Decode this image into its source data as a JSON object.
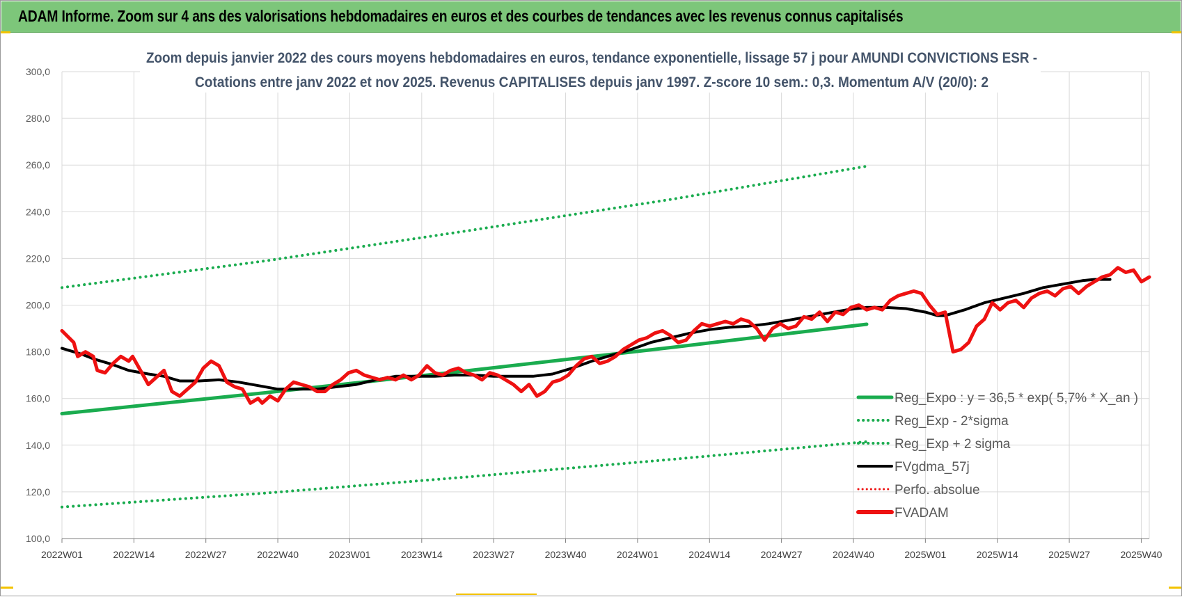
{
  "banner": {
    "title": "ADAM Informe. Zoom sur 4 ans des valorisations hebdomadaires en euros et des courbes de tendances avec les revenus connus capitalisés"
  },
  "colors": {
    "banner_bg": "#7dc67a",
    "fvadam": "#ee1111",
    "fvgdma": "#000000",
    "reg": "#1aac4f",
    "grid": "#d9d9d9"
  },
  "chart_data": {
    "type": "line",
    "title_lines": [
      "Zoom depuis janvier 2022 des cours moyens hebdomadaires en euros, tendance exponentielle, lissage 57 j pour AMUNDI CONVICTIONS ESR -",
      "Cotations entre janv 2022 et nov 2025. Revenus CAPITALISES depuis janv 1997. Z-score 10 sem.: 0,3. Momentum A/V (20/0): 2"
    ],
    "ylim": [
      100,
      300
    ],
    "y_ticks": [
      "100,0",
      "120,0",
      "140,0",
      "160,0",
      "180,0",
      "200,0",
      "220,0",
      "240,0",
      "260,0",
      "280,0",
      "300,0"
    ],
    "x_ticks": [
      "2022W01",
      "2022W14",
      "2022W27",
      "2022W40",
      "2023W01",
      "2023W14",
      "2023W27",
      "2023W40",
      "2024W01",
      "2024W14",
      "2024W27",
      "2024W40",
      "2025W01",
      "2025W14",
      "2025W27",
      "2025W40"
    ],
    "week_count": 206,
    "legend": [
      {
        "label": "Reg_Expo : y = 36,5 * exp( 5,7% *  X_an )",
        "style": "solid-green"
      },
      {
        "label": "Reg_Exp - 2*sigma",
        "style": "dotted-green"
      },
      {
        "label": "Reg_Exp + 2 sigma",
        "style": "dotted-green"
      },
      {
        "label": "FVgdma_57j",
        "style": "solid-black"
      },
      {
        "label": "Perfo. absolue",
        "style": "dotted-red"
      },
      {
        "label": "FVADAM",
        "style": "solid-red"
      }
    ],
    "series": [
      {
        "name": "Reg_Expo : y = 36,5 * exp( 5,7% *  X_an )",
        "points": [
          [
            0,
            153.5
          ],
          [
            52,
            162.5
          ],
          [
            104,
            172.0
          ],
          [
            156,
            182.0
          ],
          [
            205,
            191.8
          ]
        ]
      },
      {
        "name": "Reg_Exp - 2*sigma",
        "points": [
          [
            0,
            113.5
          ],
          [
            52,
            119.5
          ],
          [
            104,
            126.5
          ],
          [
            156,
            134.0
          ],
          [
            205,
            141.5
          ]
        ]
      },
      {
        "name": "Reg_Exp + 2 sigma",
        "points": [
          [
            0,
            207.5
          ],
          [
            52,
            219.0
          ],
          [
            104,
            232.0
          ],
          [
            156,
            245.5
          ],
          [
            205,
            259.5
          ]
        ]
      },
      {
        "name": "FVgdma_57j",
        "points": [
          [
            0,
            181.5
          ],
          [
            5,
            179
          ],
          [
            8,
            177
          ],
          [
            13,
            174.5
          ],
          [
            17,
            172
          ],
          [
            22,
            170.5
          ],
          [
            26,
            169.5
          ],
          [
            30,
            167.5
          ],
          [
            35,
            167.5
          ],
          [
            40,
            168
          ],
          [
            45,
            167
          ],
          [
            50,
            165.5
          ],
          [
            55,
            164
          ],
          [
            60,
            164
          ],
          [
            65,
            164
          ],
          [
            70,
            165
          ],
          [
            75,
            166
          ],
          [
            80,
            168
          ],
          [
            85,
            169.5
          ],
          [
            90,
            169.5
          ],
          [
            95,
            169.5
          ],
          [
            100,
            170
          ],
          [
            105,
            170
          ],
          [
            110,
            169.5
          ],
          [
            115,
            169.5
          ],
          [
            120,
            169.5
          ],
          [
            125,
            170.5
          ],
          [
            130,
            173
          ],
          [
            135,
            176
          ],
          [
            140,
            178.5
          ],
          [
            145,
            181
          ],
          [
            150,
            184
          ],
          [
            155,
            186
          ],
          [
            160,
            188
          ],
          [
            165,
            189.5
          ],
          [
            170,
            190.5
          ],
          [
            175,
            191
          ],
          [
            180,
            192
          ],
          [
            185,
            193.5
          ],
          [
            190,
            195
          ],
          [
            195,
            196.5
          ],
          [
            200,
            198
          ],
          [
            205,
            199
          ],
          [
            210,
            199
          ],
          [
            215,
            198.5
          ],
          [
            220,
            197
          ],
          [
            223,
            195.5
          ],
          [
            225,
            195.5
          ],
          [
            230,
            198
          ],
          [
            235,
            201
          ],
          [
            240,
            203
          ],
          [
            245,
            205
          ],
          [
            250,
            207.5
          ],
          [
            255,
            209
          ],
          [
            260,
            210.5
          ],
          [
            263,
            211
          ],
          [
            265,
            211
          ],
          [
            267,
            211
          ]
        ]
      },
      {
        "name": "FVADAM",
        "points": [
          [
            0,
            189
          ],
          [
            3,
            184
          ],
          [
            4,
            178
          ],
          [
            6,
            180
          ],
          [
            8,
            178
          ],
          [
            9,
            172
          ],
          [
            11,
            171
          ],
          [
            13,
            175
          ],
          [
            15,
            178
          ],
          [
            17,
            176
          ],
          [
            18,
            178
          ],
          [
            20,
            172
          ],
          [
            22,
            166
          ],
          [
            24,
            169
          ],
          [
            26,
            172
          ],
          [
            28,
            163
          ],
          [
            30,
            161
          ],
          [
            32,
            164
          ],
          [
            34,
            167
          ],
          [
            36,
            173
          ],
          [
            38,
            176
          ],
          [
            40,
            174
          ],
          [
            42,
            167
          ],
          [
            44,
            165
          ],
          [
            46,
            164
          ],
          [
            48,
            158
          ],
          [
            50,
            160
          ],
          [
            51,
            158
          ],
          [
            53,
            161
          ],
          [
            55,
            159
          ],
          [
            57,
            164
          ],
          [
            59,
            167
          ],
          [
            61,
            166
          ],
          [
            63,
            165
          ],
          [
            65,
            163
          ],
          [
            67,
            163
          ],
          [
            69,
            166
          ],
          [
            71,
            168
          ],
          [
            73,
            171
          ],
          [
            75,
            172
          ],
          [
            77,
            170
          ],
          [
            79,
            169
          ],
          [
            81,
            168
          ],
          [
            83,
            169
          ],
          [
            85,
            168
          ],
          [
            87,
            170
          ],
          [
            89,
            168
          ],
          [
            91,
            170
          ],
          [
            93,
            174
          ],
          [
            95,
            171
          ],
          [
            97,
            170
          ],
          [
            99,
            172
          ],
          [
            101,
            173
          ],
          [
            103,
            171
          ],
          [
            105,
            170
          ],
          [
            107,
            168
          ],
          [
            109,
            171
          ],
          [
            111,
            170
          ],
          [
            113,
            168
          ],
          [
            115,
            166
          ],
          [
            117,
            163
          ],
          [
            119,
            166
          ],
          [
            121,
            161
          ],
          [
            123,
            163
          ],
          [
            125,
            167
          ],
          [
            127,
            168
          ],
          [
            129,
            170
          ],
          [
            131,
            174
          ],
          [
            133,
            177
          ],
          [
            135,
            178
          ],
          [
            137,
            175
          ],
          [
            139,
            176
          ],
          [
            141,
            178
          ],
          [
            143,
            181
          ],
          [
            145,
            183
          ],
          [
            147,
            185
          ],
          [
            149,
            186
          ],
          [
            151,
            188
          ],
          [
            153,
            189
          ],
          [
            155,
            187
          ],
          [
            157,
            184
          ],
          [
            159,
            185
          ],
          [
            161,
            189
          ],
          [
            163,
            192
          ],
          [
            165,
            191
          ],
          [
            167,
            192
          ],
          [
            169,
            193
          ],
          [
            171,
            192
          ],
          [
            173,
            194
          ],
          [
            175,
            193
          ],
          [
            177,
            190
          ],
          [
            179,
            185
          ],
          [
            181,
            190
          ],
          [
            183,
            192
          ],
          [
            185,
            190
          ],
          [
            187,
            191
          ],
          [
            189,
            195
          ],
          [
            191,
            194
          ],
          [
            193,
            197
          ],
          [
            195,
            193
          ],
          [
            197,
            197
          ],
          [
            199,
            196
          ],
          [
            201,
            199
          ],
          [
            203,
            200
          ],
          [
            205,
            198
          ],
          [
            207,
            199
          ],
          [
            209,
            198
          ],
          [
            211,
            202
          ],
          [
            213,
            204
          ],
          [
            215,
            205
          ],
          [
            217,
            206
          ],
          [
            219,
            205
          ],
          [
            221,
            200
          ],
          [
            223,
            196
          ],
          [
            225,
            197
          ],
          [
            227,
            180
          ],
          [
            229,
            181
          ],
          [
            231,
            184
          ],
          [
            233,
            191
          ],
          [
            235,
            194
          ],
          [
            237,
            201
          ],
          [
            239,
            198
          ],
          [
            241,
            201
          ],
          [
            243,
            202
          ],
          [
            245,
            199
          ],
          [
            247,
            203
          ],
          [
            249,
            205
          ],
          [
            251,
            206
          ],
          [
            253,
            204
          ],
          [
            255,
            207
          ],
          [
            257,
            208
          ],
          [
            259,
            205
          ],
          [
            261,
            208
          ],
          [
            263,
            210
          ],
          [
            265,
            212
          ],
          [
            267,
            213
          ],
          [
            269,
            216
          ],
          [
            271,
            214
          ],
          [
            273,
            215
          ],
          [
            275,
            210
          ],
          [
            277,
            212
          ]
        ]
      }
    ]
  }
}
